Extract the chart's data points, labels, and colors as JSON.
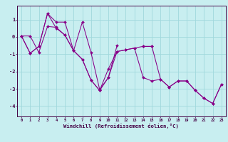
{
  "xlabel": "Windchill (Refroidissement éolien,°C)",
  "background_color": "#c8eef0",
  "grid_color": "#a0d8dc",
  "line_color": "#880088",
  "marker_color": "#880088",
  "xlim": [
    -0.5,
    23.5
  ],
  "ylim": [
    -4.6,
    1.8
  ],
  "yticks": [
    1,
    0,
    -1,
    -2,
    -3,
    -4
  ],
  "xticks": [
    0,
    1,
    2,
    3,
    4,
    5,
    6,
    7,
    8,
    9,
    10,
    11,
    12,
    13,
    14,
    15,
    16,
    17,
    18,
    19,
    20,
    21,
    22,
    23
  ],
  "series": [
    [
      0.05,
      0.05,
      -0.9,
      0.6,
      0.55,
      0.1,
      -0.8,
      -1.3,
      -2.5,
      -3.1,
      -1.85,
      -0.85,
      -0.75,
      -0.65,
      -2.35,
      -2.55,
      -2.45,
      -2.9,
      -2.55,
      -2.55,
      -3.1,
      -3.55,
      -3.85,
      -2.75
    ],
    [
      0.05,
      -0.95,
      -0.55,
      1.35,
      0.85,
      0.85,
      -0.8,
      0.85,
      -0.9,
      -3.05,
      -2.35,
      -0.5,
      null,
      null,
      -0.55,
      -0.55,
      null,
      null,
      null,
      null,
      null,
      null,
      null,
      null
    ],
    [
      0.05,
      -0.95,
      -0.55,
      1.35,
      0.5,
      0.1,
      -0.8,
      -1.3,
      -2.5,
      -3.1,
      -2.35,
      -0.85,
      -0.75,
      -0.65,
      -0.55,
      -0.55,
      -2.45,
      -2.9,
      -2.55,
      -2.55,
      -3.1,
      -3.55,
      -3.85,
      -2.75
    ]
  ]
}
